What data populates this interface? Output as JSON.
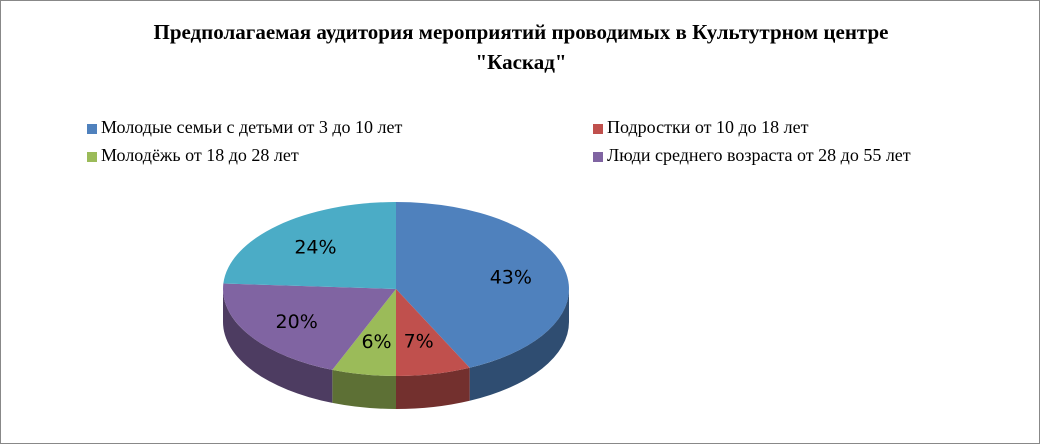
{
  "chart_data": {
    "type": "pie",
    "title": "Предполагаемая аудитория мероприятий проводимых в Культутрном центре \"Каскад\"",
    "categories": [
      "Молодые семьи с детьми от 3 до 10 лет",
      "Подростки от 10 до 18 лет",
      "Молодёжь от 18 до 28 лет",
      "Люди среднего возраста от 28 до 55 лет",
      null
    ],
    "values": [
      43,
      7,
      6,
      20,
      24
    ],
    "value_labels": [
      "43%",
      "7%",
      "6%",
      "20%",
      "24%"
    ],
    "colors": [
      "#4f81bd",
      "#c0504d",
      "#9bbb59",
      "#8064a2",
      "#4bacc6"
    ],
    "legend": "top"
  }
}
